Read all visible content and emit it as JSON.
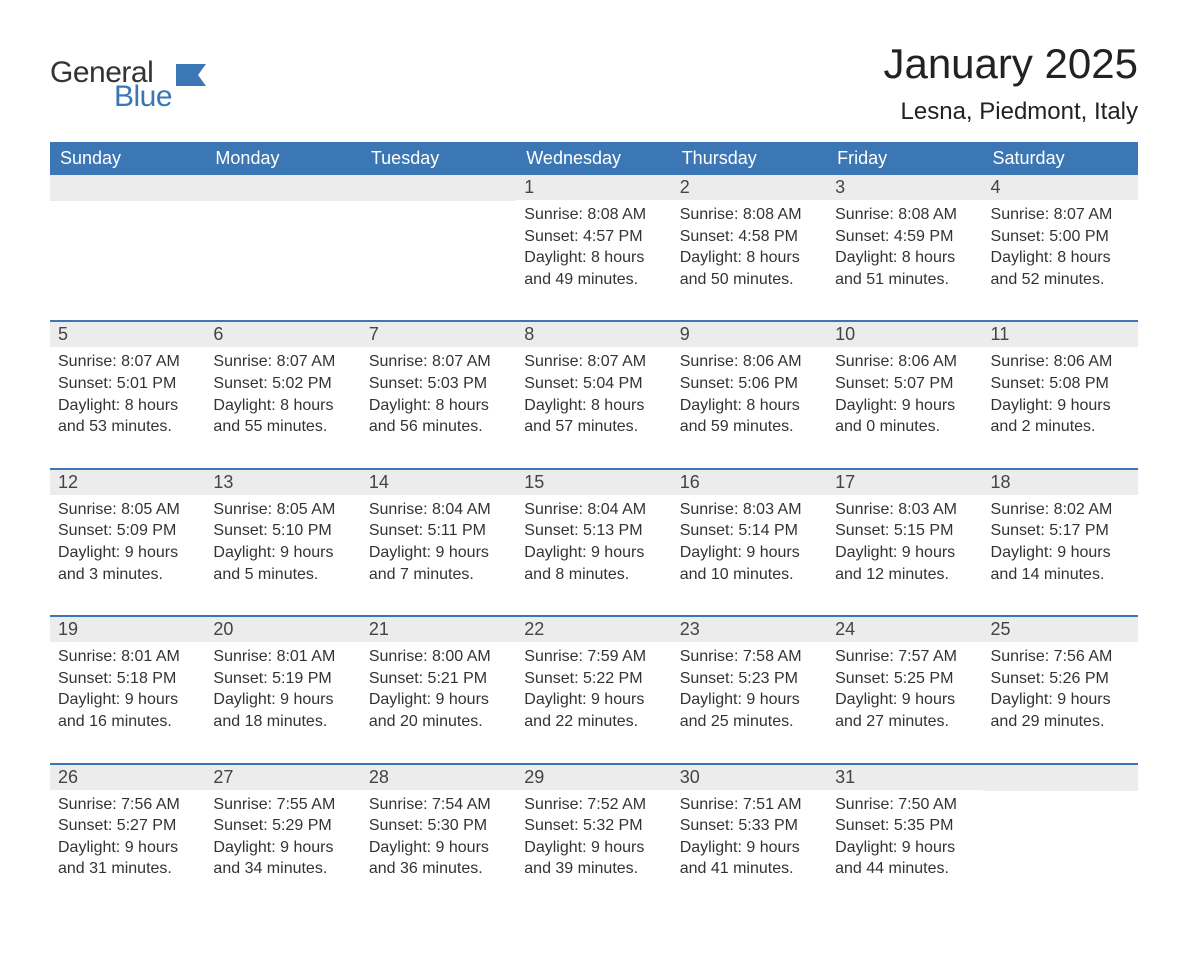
{
  "logo": {
    "general": "General",
    "blue": "Blue",
    "flag_color": "#3b76b5"
  },
  "title": "January 2025",
  "location": "Lesna, Piedmont, Italy",
  "colors": {
    "header_bg": "#3b76b5",
    "header_text": "#ffffff",
    "daynum_bg": "#ececec",
    "text": "#333333",
    "row_border": "#3b76b5",
    "background": "#ffffff"
  },
  "fonts": {
    "title_size_pt": 32,
    "location_size_pt": 18,
    "header_size_pt": 14,
    "body_size_pt": 12
  },
  "weekdays": [
    "Sunday",
    "Monday",
    "Tuesday",
    "Wednesday",
    "Thursday",
    "Friday",
    "Saturday"
  ],
  "weeks": [
    [
      null,
      null,
      null,
      {
        "day": "1",
        "sunrise": "Sunrise: 8:08 AM",
        "sunset": "Sunset: 4:57 PM",
        "daylight1": "Daylight: 8 hours",
        "daylight2": "and 49 minutes."
      },
      {
        "day": "2",
        "sunrise": "Sunrise: 8:08 AM",
        "sunset": "Sunset: 4:58 PM",
        "daylight1": "Daylight: 8 hours",
        "daylight2": "and 50 minutes."
      },
      {
        "day": "3",
        "sunrise": "Sunrise: 8:08 AM",
        "sunset": "Sunset: 4:59 PM",
        "daylight1": "Daylight: 8 hours",
        "daylight2": "and 51 minutes."
      },
      {
        "day": "4",
        "sunrise": "Sunrise: 8:07 AM",
        "sunset": "Sunset: 5:00 PM",
        "daylight1": "Daylight: 8 hours",
        "daylight2": "and 52 minutes."
      }
    ],
    [
      {
        "day": "5",
        "sunrise": "Sunrise: 8:07 AM",
        "sunset": "Sunset: 5:01 PM",
        "daylight1": "Daylight: 8 hours",
        "daylight2": "and 53 minutes."
      },
      {
        "day": "6",
        "sunrise": "Sunrise: 8:07 AM",
        "sunset": "Sunset: 5:02 PM",
        "daylight1": "Daylight: 8 hours",
        "daylight2": "and 55 minutes."
      },
      {
        "day": "7",
        "sunrise": "Sunrise: 8:07 AM",
        "sunset": "Sunset: 5:03 PM",
        "daylight1": "Daylight: 8 hours",
        "daylight2": "and 56 minutes."
      },
      {
        "day": "8",
        "sunrise": "Sunrise: 8:07 AM",
        "sunset": "Sunset: 5:04 PM",
        "daylight1": "Daylight: 8 hours",
        "daylight2": "and 57 minutes."
      },
      {
        "day": "9",
        "sunrise": "Sunrise: 8:06 AM",
        "sunset": "Sunset: 5:06 PM",
        "daylight1": "Daylight: 8 hours",
        "daylight2": "and 59 minutes."
      },
      {
        "day": "10",
        "sunrise": "Sunrise: 8:06 AM",
        "sunset": "Sunset: 5:07 PM",
        "daylight1": "Daylight: 9 hours",
        "daylight2": "and 0 minutes."
      },
      {
        "day": "11",
        "sunrise": "Sunrise: 8:06 AM",
        "sunset": "Sunset: 5:08 PM",
        "daylight1": "Daylight: 9 hours",
        "daylight2": "and 2 minutes."
      }
    ],
    [
      {
        "day": "12",
        "sunrise": "Sunrise: 8:05 AM",
        "sunset": "Sunset: 5:09 PM",
        "daylight1": "Daylight: 9 hours",
        "daylight2": "and 3 minutes."
      },
      {
        "day": "13",
        "sunrise": "Sunrise: 8:05 AM",
        "sunset": "Sunset: 5:10 PM",
        "daylight1": "Daylight: 9 hours",
        "daylight2": "and 5 minutes."
      },
      {
        "day": "14",
        "sunrise": "Sunrise: 8:04 AM",
        "sunset": "Sunset: 5:11 PM",
        "daylight1": "Daylight: 9 hours",
        "daylight2": "and 7 minutes."
      },
      {
        "day": "15",
        "sunrise": "Sunrise: 8:04 AM",
        "sunset": "Sunset: 5:13 PM",
        "daylight1": "Daylight: 9 hours",
        "daylight2": "and 8 minutes."
      },
      {
        "day": "16",
        "sunrise": "Sunrise: 8:03 AM",
        "sunset": "Sunset: 5:14 PM",
        "daylight1": "Daylight: 9 hours",
        "daylight2": "and 10 minutes."
      },
      {
        "day": "17",
        "sunrise": "Sunrise: 8:03 AM",
        "sunset": "Sunset: 5:15 PM",
        "daylight1": "Daylight: 9 hours",
        "daylight2": "and 12 minutes."
      },
      {
        "day": "18",
        "sunrise": "Sunrise: 8:02 AM",
        "sunset": "Sunset: 5:17 PM",
        "daylight1": "Daylight: 9 hours",
        "daylight2": "and 14 minutes."
      }
    ],
    [
      {
        "day": "19",
        "sunrise": "Sunrise: 8:01 AM",
        "sunset": "Sunset: 5:18 PM",
        "daylight1": "Daylight: 9 hours",
        "daylight2": "and 16 minutes."
      },
      {
        "day": "20",
        "sunrise": "Sunrise: 8:01 AM",
        "sunset": "Sunset: 5:19 PM",
        "daylight1": "Daylight: 9 hours",
        "daylight2": "and 18 minutes."
      },
      {
        "day": "21",
        "sunrise": "Sunrise: 8:00 AM",
        "sunset": "Sunset: 5:21 PM",
        "daylight1": "Daylight: 9 hours",
        "daylight2": "and 20 minutes."
      },
      {
        "day": "22",
        "sunrise": "Sunrise: 7:59 AM",
        "sunset": "Sunset: 5:22 PM",
        "daylight1": "Daylight: 9 hours",
        "daylight2": "and 22 minutes."
      },
      {
        "day": "23",
        "sunrise": "Sunrise: 7:58 AM",
        "sunset": "Sunset: 5:23 PM",
        "daylight1": "Daylight: 9 hours",
        "daylight2": "and 25 minutes."
      },
      {
        "day": "24",
        "sunrise": "Sunrise: 7:57 AM",
        "sunset": "Sunset: 5:25 PM",
        "daylight1": "Daylight: 9 hours",
        "daylight2": "and 27 minutes."
      },
      {
        "day": "25",
        "sunrise": "Sunrise: 7:56 AM",
        "sunset": "Sunset: 5:26 PM",
        "daylight1": "Daylight: 9 hours",
        "daylight2": "and 29 minutes."
      }
    ],
    [
      {
        "day": "26",
        "sunrise": "Sunrise: 7:56 AM",
        "sunset": "Sunset: 5:27 PM",
        "daylight1": "Daylight: 9 hours",
        "daylight2": "and 31 minutes."
      },
      {
        "day": "27",
        "sunrise": "Sunrise: 7:55 AM",
        "sunset": "Sunset: 5:29 PM",
        "daylight1": "Daylight: 9 hours",
        "daylight2": "and 34 minutes."
      },
      {
        "day": "28",
        "sunrise": "Sunrise: 7:54 AM",
        "sunset": "Sunset: 5:30 PM",
        "daylight1": "Daylight: 9 hours",
        "daylight2": "and 36 minutes."
      },
      {
        "day": "29",
        "sunrise": "Sunrise: 7:52 AM",
        "sunset": "Sunset: 5:32 PM",
        "daylight1": "Daylight: 9 hours",
        "daylight2": "and 39 minutes."
      },
      {
        "day": "30",
        "sunrise": "Sunrise: 7:51 AM",
        "sunset": "Sunset: 5:33 PM",
        "daylight1": "Daylight: 9 hours",
        "daylight2": "and 41 minutes."
      },
      {
        "day": "31",
        "sunrise": "Sunrise: 7:50 AM",
        "sunset": "Sunset: 5:35 PM",
        "daylight1": "Daylight: 9 hours",
        "daylight2": "and 44 minutes."
      },
      null
    ]
  ]
}
